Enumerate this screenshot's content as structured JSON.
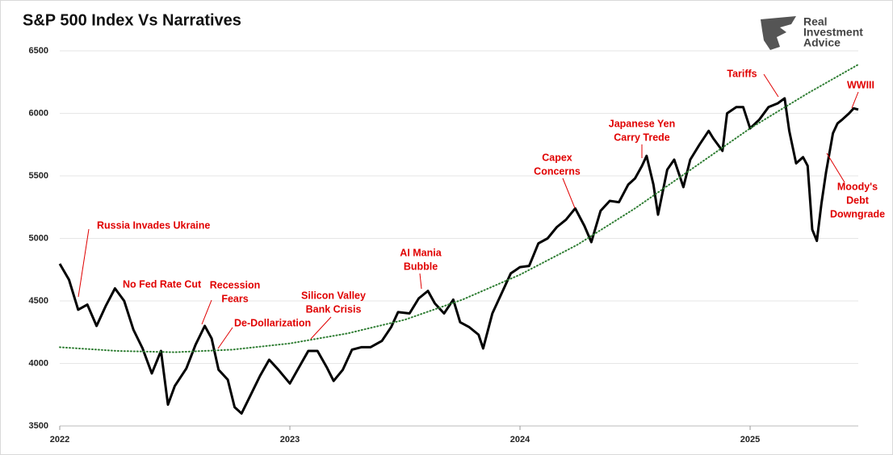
{
  "chart_data": {
    "type": "line",
    "title": "S&P 500 Index Vs Narratives",
    "xlim": [
      2022,
      2025.47
    ],
    "xticks": [
      2022,
      2023,
      2024,
      2025
    ],
    "ylim": [
      3500,
      6500
    ],
    "yticks": [
      3500,
      4000,
      4500,
      5000,
      5500,
      6000,
      6500
    ],
    "grid": true,
    "series": [
      {
        "name": "S&P 500 Index",
        "color": "#000000",
        "style": "solid",
        "x": [
          2022.0,
          2022.04,
          2022.08,
          2022.12,
          2022.16,
          2022.2,
          2022.24,
          2022.28,
          2022.32,
          2022.36,
          2022.4,
          2022.44,
          2022.47,
          2022.5,
          2022.55,
          2022.59,
          2022.63,
          2022.66,
          2022.69,
          2022.73,
          2022.76,
          2022.79,
          2022.83,
          2022.87,
          2022.91,
          2022.95,
          2023.0,
          2023.04,
          2023.08,
          2023.12,
          2023.16,
          2023.19,
          2023.23,
          2023.27,
          2023.31,
          2023.35,
          2023.4,
          2023.44,
          2023.47,
          2023.52,
          2023.56,
          2023.6,
          2023.63,
          2023.67,
          2023.71,
          2023.74,
          2023.78,
          2023.82,
          2023.84,
          2023.88,
          2023.92,
          2023.96,
          2024.0,
          2024.04,
          2024.08,
          2024.12,
          2024.16,
          2024.2,
          2024.24,
          2024.28,
          2024.31,
          2024.35,
          2024.39,
          2024.43,
          2024.47,
          2024.5,
          2024.53,
          2024.55,
          2024.58,
          2024.6,
          2024.64,
          2024.67,
          2024.71,
          2024.74,
          2024.78,
          2024.82,
          2024.84,
          2024.88,
          2024.9,
          2024.94,
          2024.97,
          2025.0,
          2025.04,
          2025.08,
          2025.12,
          2025.15,
          2025.17,
          2025.2,
          2025.23,
          2025.25,
          2025.27,
          2025.29,
          2025.31,
          2025.33,
          2025.36,
          2025.38,
          2025.4,
          2025.43,
          2025.45,
          2025.47
        ],
        "values": [
          4797,
          4670,
          4430,
          4470,
          4300,
          4460,
          4600,
          4500,
          4270,
          4120,
          3920,
          4100,
          3670,
          3820,
          3960,
          4150,
          4300,
          4200,
          3950,
          3870,
          3650,
          3600,
          3750,
          3900,
          4030,
          3950,
          3840,
          3970,
          4100,
          4100,
          3970,
          3860,
          3950,
          4110,
          4130,
          4130,
          4180,
          4290,
          4410,
          4400,
          4520,
          4580,
          4480,
          4400,
          4510,
          4330,
          4290,
          4230,
          4120,
          4400,
          4560,
          4720,
          4770,
          4780,
          4960,
          5000,
          5090,
          5150,
          5240,
          5100,
          4970,
          5220,
          5300,
          5290,
          5430,
          5480,
          5580,
          5660,
          5430,
          5190,
          5550,
          5630,
          5410,
          5630,
          5750,
          5860,
          5800,
          5700,
          6000,
          6050,
          6050,
          5880,
          5950,
          6050,
          6080,
          6120,
          5860,
          5600,
          5650,
          5580,
          5070,
          4980,
          5280,
          5530,
          5840,
          5920,
          5950,
          6000,
          6040,
          6030
        ]
      },
      {
        "name": "Trend",
        "color": "#2e7d32",
        "style": "dotted",
        "x": [
          2022.0,
          2022.25,
          2022.5,
          2022.75,
          2023.0,
          2023.25,
          2023.5,
          2023.75,
          2024.0,
          2024.25,
          2024.5,
          2024.75,
          2025.0,
          2025.25,
          2025.47
        ],
        "values": [
          4130,
          4100,
          4090,
          4110,
          4160,
          4240,
          4350,
          4510,
          4710,
          4950,
          5240,
          5560,
          5880,
          6160,
          6390
        ]
      }
    ],
    "annotations": [
      [
        "Russia Invades Ukraine"
      ],
      [
        "No Fed Rate Cut"
      ],
      [
        "Recession",
        "Fears"
      ],
      [
        "De-Dollarization"
      ],
      [
        "Silicon Valley",
        "Bank Crisis"
      ],
      [
        "AI Mania",
        "Bubble"
      ],
      [
        "Capex",
        "Concerns"
      ],
      [
        "Japanese Yen",
        "Carry Trede"
      ],
      [
        "Tariffs"
      ],
      [
        "WWIII"
      ],
      [
        "Moody's",
        "Debt",
        "Downgrade"
      ]
    ],
    "logo": [
      "Real",
      "Investment",
      "Advice"
    ]
  }
}
